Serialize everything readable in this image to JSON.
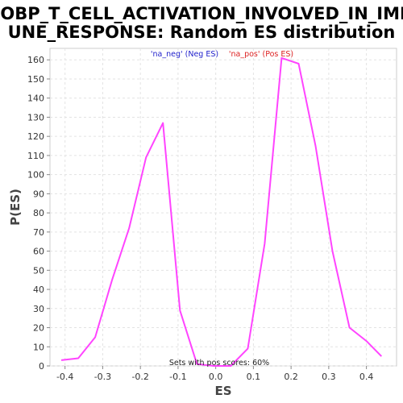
{
  "chart_data": {
    "type": "line",
    "title_lines": [
      "GOBP_T_CELL_ACTIVATION_INVOLVED_IN_IMM",
      "UNE_RESPONSE: Random ES distribution"
    ],
    "xlabel": "ES",
    "ylabel": "P(ES)",
    "xlim": [
      -0.44,
      0.48
    ],
    "ylim": [
      0,
      166
    ],
    "x_ticks": [
      -0.4,
      -0.3,
      -0.2,
      -0.1,
      0.0,
      0.1,
      0.2,
      0.3,
      0.4
    ],
    "x_tick_labels": [
      "-0.4",
      "-0.3",
      "-0.2",
      "-0.1",
      "0.0",
      "0.1",
      "0.2",
      "0.3",
      "0.4"
    ],
    "y_ticks": [
      0,
      10,
      20,
      30,
      40,
      50,
      60,
      70,
      80,
      90,
      100,
      110,
      120,
      130,
      140,
      150,
      160
    ],
    "y_tick_labels": [
      "0",
      "10",
      "20",
      "30",
      "40",
      "50",
      "60",
      "70",
      "80",
      "90",
      "100",
      "110",
      "120",
      "130",
      "140",
      "150",
      "160"
    ],
    "grid": true,
    "legend": {
      "placement": "top-center",
      "items": [
        {
          "text": "'na_neg' (Neg ES)",
          "color": "#2222cc"
        },
        {
          "text": "'na_pos' (Pos ES)",
          "color": "#dd2222"
        }
      ]
    },
    "annotation": "Sets with pos scores: 60%",
    "series": [
      {
        "color": "#ff44ff",
        "x": [
          -0.41,
          -0.365,
          -0.32,
          -0.275,
          -0.23,
          -0.185,
          -0.14,
          -0.095,
          -0.05,
          -0.005,
          0.04,
          0.085,
          0.13,
          0.175,
          0.22,
          0.265,
          0.31,
          0.355,
          0.4,
          0.44
        ],
        "y": [
          3,
          4,
          15,
          45,
          72,
          109,
          127,
          29,
          1,
          0,
          0,
          9,
          64,
          161,
          158,
          115,
          60,
          20,
          13,
          5
        ]
      }
    ]
  }
}
